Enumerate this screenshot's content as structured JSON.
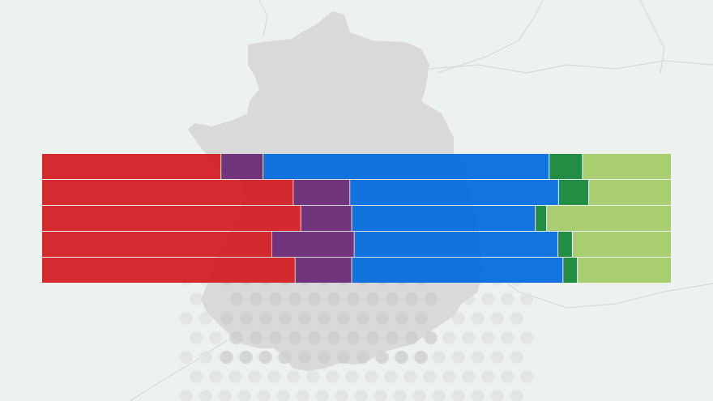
{
  "chart_data": {
    "type": "bar",
    "orientation": "horizontal",
    "stacked": true,
    "normalized": true,
    "title": "",
    "xlabel": "",
    "ylabel": "",
    "xlim": [
      0,
      100
    ],
    "categories": [
      "",
      "",
      "",
      "",
      ""
    ],
    "series": [
      {
        "color": "#d42329",
        "values": [
          28.5,
          40.0,
          41.2,
          36.6,
          40.3
        ]
      },
      {
        "color": "#6d2f7a",
        "values": [
          6.7,
          9.0,
          8.1,
          13.1,
          9.0
        ]
      },
      {
        "color": "#0a6fde",
        "values": [
          45.5,
          33.2,
          29.2,
          32.4,
          33.6
        ]
      },
      {
        "color": "#1a8a3e",
        "values": [
          5.3,
          4.8,
          1.8,
          2.3,
          2.3
        ]
      },
      {
        "color": "#a6cc6a",
        "values": [
          14.0,
          13.0,
          19.7,
          15.6,
          14.8
        ]
      }
    ],
    "grid": false,
    "legend": "none"
  },
  "background": {
    "color": "#eef2ef",
    "map_color": "#d9d9d9",
    "dot_color": "#e3e6e4",
    "border_color": "#d6dbd7"
  }
}
